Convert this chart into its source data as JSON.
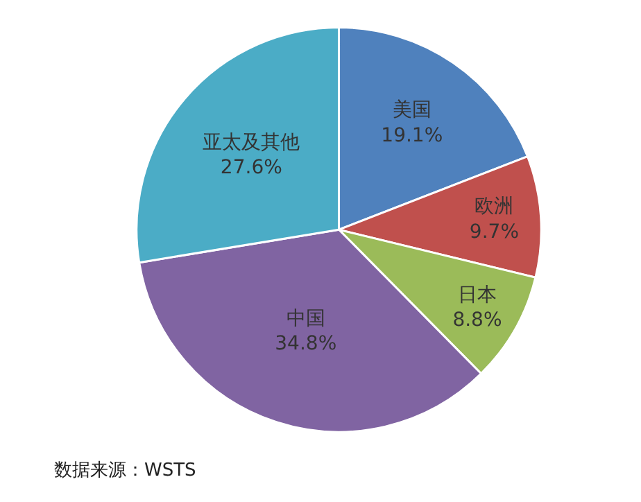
{
  "chart_data": {
    "type": "pie",
    "categories": [
      "美国",
      "欧洲",
      "日本",
      "中国",
      "亚太及其他"
    ],
    "values": [
      19.1,
      9.7,
      8.8,
      34.8,
      27.6
    ],
    "value_labels": [
      "19.1%",
      "9.7%",
      "8.8%",
      "34.8%",
      "27.6%"
    ],
    "colors": [
      "#4f81bd",
      "#c0504d",
      "#9bbb59",
      "#8064a2",
      "#4bacc6"
    ],
    "annotations": [
      "数据来源：WSTS"
    ]
  }
}
